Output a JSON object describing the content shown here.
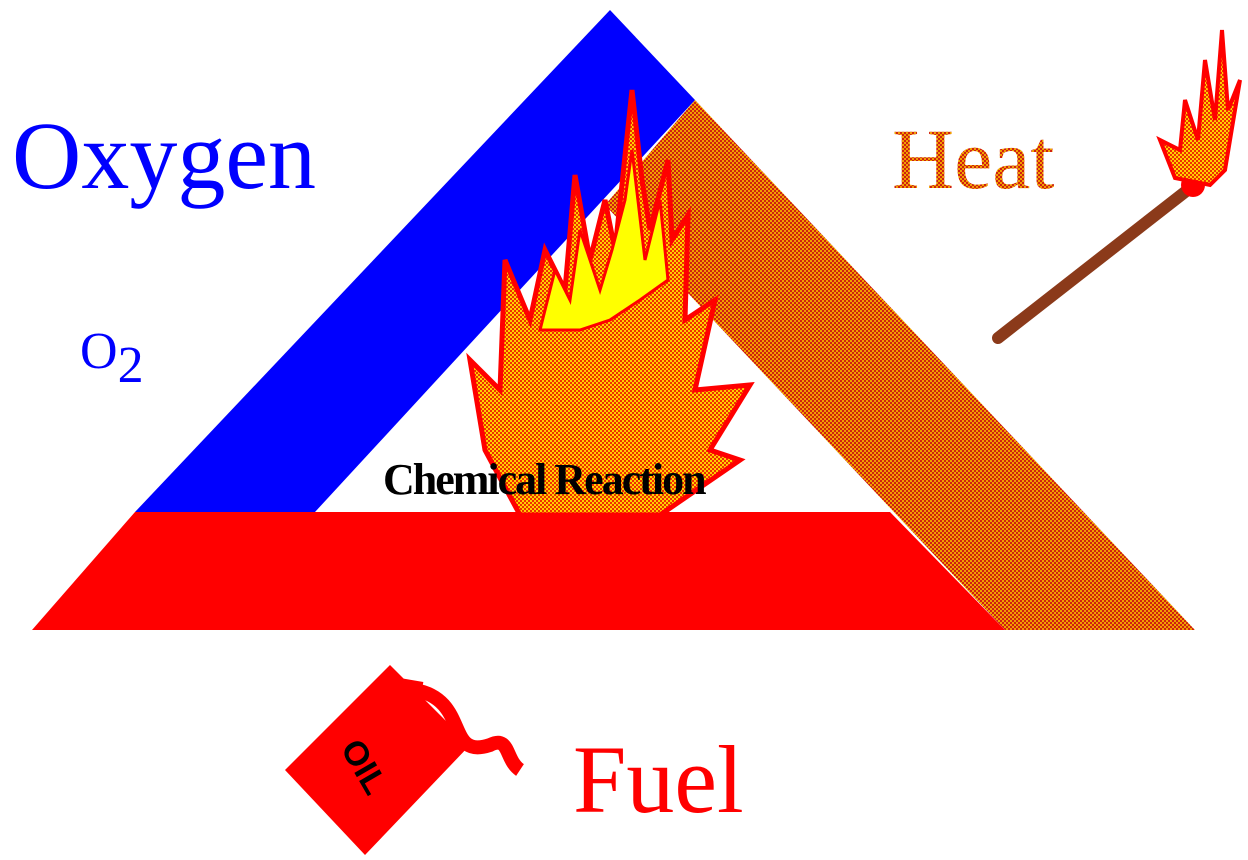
{
  "oxygen": {
    "label": "Oxygen",
    "formula": {
      "symbol": "O",
      "subscript": "2"
    }
  },
  "heat": {
    "label": "Heat"
  },
  "center": {
    "label": "Chemical Reaction"
  },
  "fuel": {
    "label": "Fuel",
    "can_label": "OIL"
  }
}
